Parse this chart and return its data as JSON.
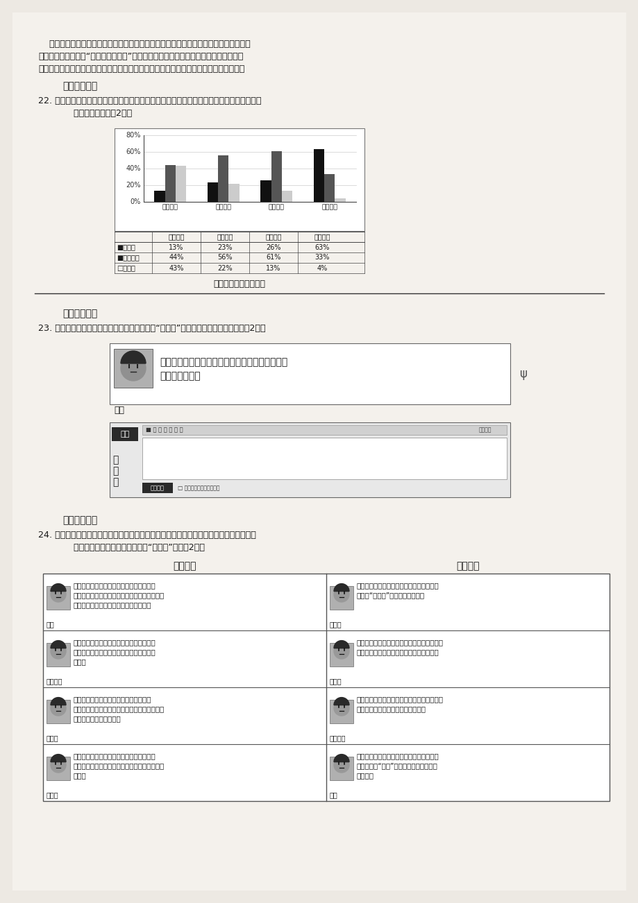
{
  "bg_color": "#f0eeeb",
  "page_bg": "#f5f3f0",
  "para1_lines": [
    "    互联网络越来越普及，网络已成为人们重要的交流平台。语文课上，老师引导同学们阅",
    "读了名著，还开展了“网上读写与交流”的实践活动。假期间，同学们在班级的论坛上，",
    "就名著阅读的问题进行交流。请你参加以下的活动。（答题时须使用规范的汉语言文字）"
  ],
  "section1": "【网络调查】",
  "q22_line1": "22. 有同学在论坛里发起了关于阅读兴趣的调查，得到以下材料。请仔细阅读表格中的数据，",
  "q22_line2": "    说说你的发现。（2分）",
  "chart_title": "中学生阅读兴趣统计表",
  "section2": "【网络讨论】",
  "q23": "23. 小宁同学在论坛里发了下面的帖子，请你在“回复框”中励说她积极地阅读名著。（2分）",
  "xiao_ning_text1": "我觉得名著都是长篇大论，读起来太费劲，还是看",
  "xiao_ning_text2": "漫画比较轻松。",
  "xiao_ning_name": "小宁",
  "section3": "【网络交流】",
  "q24_line1": "24. 同学们就名著阅读的问题发表了很多看法，以下是同学们发表的帖子。请仔细阅读后选",
  "q24_line2": "    择一组帖子，把你的看法填写在“回复框”内。（2分）",
  "group1_title": "帖子组一",
  "group2_title": "帖子组二",
  "bar_categories": [
    "文学名著",
    "言情小说",
    "恐怖故事",
    "漫画漫画"
  ],
  "bar_very_like": [
    13,
    23,
    26,
    63
  ],
  "bar_casual": [
    44,
    56,
    61,
    33
  ],
  "bar_dislike": [
    43,
    22,
    13,
    4
  ],
  "table_col_headers": [
    "文学名著",
    "言情小说",
    "恐怖故事",
    "漫画漫画"
  ],
  "legend_labels": [
    "很喜欢",
    "随便看看",
    "不喜欢"
  ],
  "posts_g1_names": [
    "路过",
    "打酷油满",
    "小秃乙",
    "路人甲"
  ],
  "posts_g1_texts": [
    [
      "《格列佛游记》中小人国的宗教和大臣们的",
      "行为实在太奇怪，通过挑帘了来隐訩官了，返回",
      "为判断的高超现实竞争，真是不可思议。"
    ],
    [
      "作者是在映射当时英国政坛上各派别利和境",
      "格，他们之间的争斗在作者看来也是不可思",
      "议的。"
    ],
    [
      "在就读多人科学院中，那些融合各种研究",
      "项目完全不可理解，从成功里面提取费用，把本",
      "来成大器，这很不正常。"
    ],
    [
      "还是想到了智马最高的马斯布拉，苏格兰那",
      "天才的山栋和抗争，看到这些那里，我就那么大",
      "不己。"
    ]
  ],
  "posts_g2_names": [
    "小秃乙",
    "路人甲",
    "打酷油满",
    "路过"
  ],
  "posts_g2_texts": [
    [
      "《西游记》里面唐肃实在极其无能，连小妙",
      "性会回“惊到我”，一本事也没有。"
    ],
    [
      "《大话西游》里面的唐咀，那才真是笑啊，会",
      "成仙度人，天天啥里啧啧，您慢慢慢慢了。"
    ],
    [
      "看了个网络小说《浪子传》，里面的唐咀真是",
      "有趣，聊明和尚，还那么多么多情。"
    ],
    [
      "我在《新民周刊》上看到，胡居入先生谈唐",
      "伯是个会吐“学年”，好像和我们说的都不",
      "一样啊。"
    ]
  ]
}
